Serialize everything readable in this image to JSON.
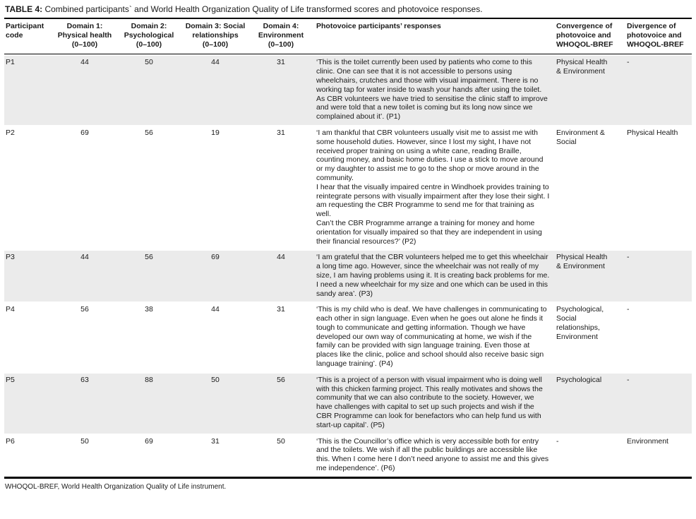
{
  "table": {
    "title_label": "TABLE 4:",
    "title_text": " Combined participants` and World Health Organization Quality of Life transformed scores and photovoice responses.",
    "columns": [
      "Participant\ncode",
      "Domain 1:\nPhysical health\n(0–100)",
      "Domain 2:\nPsychological\n(0–100)",
      "Domain 3: Social\nrelationships\n(0–100)",
      "Domain 4:\nEnvironment\n(0–100)",
      "Photovoice participants’ responses",
      "Convergence of\nphotovoice and\nWHOQOL-BREF",
      "Divergence of\nphotovoice and\nWHOQOL-BREF"
    ],
    "rows": [
      {
        "code": "P1",
        "d1": 44,
        "d2": 50,
        "d3": 44,
        "d4": 31,
        "response": "‘This is the toilet currently been used by patients who come to this clinic. One can see that it is not accessible to persons using wheelchairs, crutches and those with visual impairment. There is no working tap for water inside to wash your hands after using the toilet. As CBR volunteers we have tried to sensitise the clinic staff to improve and were told that a new toilet is coming but its long now since we complained about it’. (P1)",
        "convergence": "Physical Health\n& Environment",
        "divergence": "-"
      },
      {
        "code": "P2",
        "d1": 69,
        "d2": 56,
        "d3": 19,
        "d4": 31,
        "response": "‘I am thankful that CBR volunteers usually visit me to assist me with some household duties. However, since I lost my sight, I have not received proper training on using a white cane, reading Braille, counting money, and basic home duties. I use a stick to move around or my daughter to assist me to go to the shop or move around in the community.\nI hear that the visually impaired centre in Windhoek provides training to reintegrate persons with visually impairment after they lose their sight. I am requesting the CBR Programme to send me for that training as well.\nCan’t the CBR Programme arrange a training for money and home orientation for visually impaired so that they are independent in using their financial resources?’ (P2)",
        "convergence": "Environment &\nSocial",
        "divergence": "Physical Health"
      },
      {
        "code": "P3",
        "d1": 44,
        "d2": 56,
        "d3": 69,
        "d4": 44,
        "response": "‘I am grateful that the CBR volunteers helped me to get this wheelchair a long time ago. However, since the wheelchair was not really of my size, I am having problems using it. It is creating back problems for me. I need a new wheelchair for my size and one which can be used in this sandy area’. (P3)",
        "convergence": "Physical Health\n& Environment",
        "divergence": "-"
      },
      {
        "code": "P4",
        "d1": 56,
        "d2": 38,
        "d3": 44,
        "d4": 31,
        "response": "‘This is my child who is deaf. We have challenges in communicating to each other in sign language. Even when he goes out alone he finds it tough to communicate and getting information. Though we have developed our own way of communicating at home, we wish if the family can be provided with sign language training. Even those at places like the clinic, police and school should also receive basic sign language training’. (P4)",
        "convergence": "Psychological,\nSocial\nrelationships,\nEnvironment",
        "divergence": "-"
      },
      {
        "code": "P5",
        "d1": 63,
        "d2": 88,
        "d3": 50,
        "d4": 56,
        "response": "‘This is a project of a person with visual impairment who is doing well with this chicken farming project. This really motivates and shows the community that we can also contribute to the society. However, we have challenges with capital to set up such projects and wish if the CBR Programme can look for benefactors who can help fund us with start-up capital’. (P5)",
        "convergence": "Psychological",
        "divergence": "-"
      },
      {
        "code": "P6",
        "d1": 50,
        "d2": 69,
        "d3": 31,
        "d4": 50,
        "response": "‘This is the Councillor’s office which is very accessible both for entry and the toilets. We wish if all the public buildings are accessible like this. When I come here I don’t need anyone to assist me and this gives me independence’. (P6)",
        "convergence": "-",
        "divergence": "Environment"
      }
    ],
    "footnote": "WHOQOL-BREF, World Health Organization Quality of Life instrument."
  }
}
